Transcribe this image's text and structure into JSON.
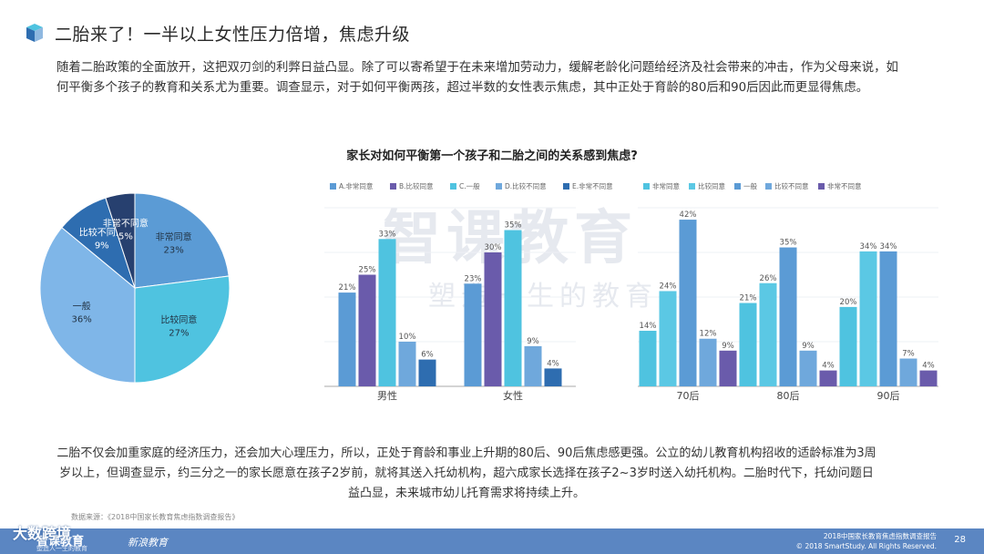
{
  "header": {
    "title": "二胎来了！一半以上女性压力倍增，焦虑升级"
  },
  "intro": {
    "text": "随着二胎政策的全面放开，这把双刃剑的利弊日益凸显。除了可以寄希望于在未来增加劳动力，缓解老龄化问题给经济及社会带来的冲击，作为父母来说，如何平衡多个孩子的教育和关系尤为重要。调查显示，对于如何平衡两孩，超过半数的女性表示焦虑，其中正处于育龄的80后和90后因此而更显得焦虑。"
  },
  "watermark": {
    "main": "智课教育",
    "sub": "塑造一生的教育"
  },
  "chart_data": [
    {
      "type": "pie",
      "title": "家长对如何平衡第一个孩子和二胎之间的关系感到焦虑?",
      "slices": [
        {
          "label": "非常同意",
          "value": 23,
          "color": "#5b9bd5"
        },
        {
          "label": "比较同意",
          "value": 27,
          "color": "#4fc3e0"
        },
        {
          "label": "一般",
          "value": 36,
          "color": "#7fb6e8"
        },
        {
          "label": "比较不同意",
          "value": 9,
          "color": "#2e6db0"
        },
        {
          "label": "非常不同意",
          "value": 5,
          "color": "#27406f"
        }
      ]
    },
    {
      "type": "bar",
      "categories": [
        "男性",
        "女性"
      ],
      "ylim": [
        0,
        40
      ],
      "series": [
        {
          "name": "A.非常同意",
          "values": [
            21,
            23
          ],
          "color": "#5b9bd5"
        },
        {
          "name": "B.比较同意",
          "values": [
            25,
            30
          ],
          "color": "#6a5bab"
        },
        {
          "name": "C.一般",
          "values": [
            33,
            35
          ],
          "color": "#4fc3e0"
        },
        {
          "name": "D.比较不同意",
          "values": [
            10,
            9
          ],
          "color": "#6fa8dc"
        },
        {
          "name": "E.非常不同意",
          "values": [
            6,
            4
          ],
          "color": "#2e6db0"
        }
      ]
    },
    {
      "type": "bar",
      "categories": [
        "70后",
        "80后",
        "90后"
      ],
      "ylim": [
        0,
        45
      ],
      "series": [
        {
          "name": "非常同意",
          "values": [
            14,
            21,
            20
          ],
          "color": "#4fc3e0"
        },
        {
          "name": "比较同意",
          "values": [
            24,
            26,
            34
          ],
          "color": "#5bc8e4"
        },
        {
          "name": "一般",
          "values": [
            42,
            35,
            34
          ],
          "color": "#5b9bd5"
        },
        {
          "name": "比较不同意",
          "values": [
            12,
            9,
            7
          ],
          "color": "#6fa8dc"
        },
        {
          "name": "非常不同意",
          "values": [
            9,
            4,
            4
          ],
          "color": "#6a5bab"
        }
      ]
    }
  ],
  "conclusion": {
    "text": "二胎不仅会加重家庭的经济压力，还会加大心理压力，所以，正处于育龄和事业上升期的80后、90后焦虑感更强。公立的幼儿教育机构招收的适龄标准为3周岁以上，但调查显示，约三分之一的家长愿意在孩子2岁前，就将其送入托幼机构，超六成家长选择在孩子2~3岁时送入幼托机构。二胎时代下，托幼问题日益凸显，未来城市幼儿托育需求将持续上升。"
  },
  "source": {
    "text": "数据来源：《2018中国家长教育焦虑指数调查报告》"
  },
  "footer": {
    "brand": "智课教育",
    "brand_sub": "塑造人一生的教育",
    "partner": "新浪教育",
    "report": "2018中国家长教育焦虑指数调查报告",
    "copyright": "© 2018 SmartStudy. All Rights Reserved.",
    "page": "28",
    "logo_overlay": "大数跨境"
  }
}
